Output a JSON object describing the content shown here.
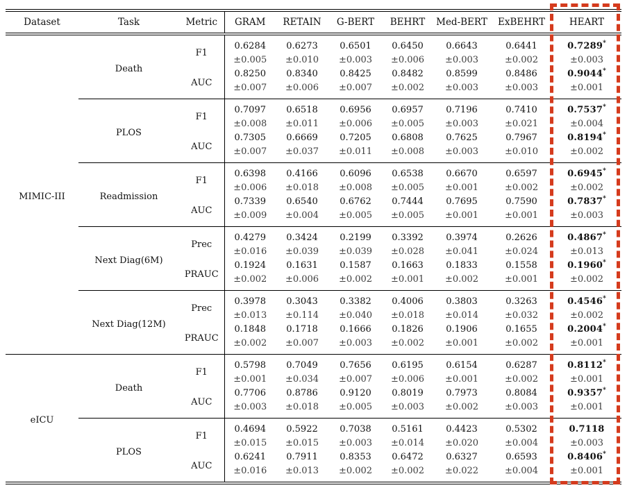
{
  "table": {
    "columns": [
      "Dataset",
      "Task",
      "Metric",
      "GRAM",
      "RETAIN",
      "G-BERT",
      "BEHRT",
      "Med-BERT",
      "ExBEHRT",
      "HEART"
    ],
    "star_symbol": "*",
    "plus_minus": "±",
    "highlight_color": "#d53b1d",
    "groups": [
      {
        "dataset": "MIMIC-III",
        "tasks": [
          {
            "task": "Death",
            "rows": [
              {
                "metric": "F1",
                "values": [
                  "0.6284",
                  "0.6273",
                  "0.6501",
                  "0.6450",
                  "0.6643",
                  "0.6441"
                ],
                "errors": [
                  "±0.005",
                  "±0.010",
                  "±0.003",
                  "±0.006",
                  "±0.003",
                  "±0.002"
                ],
                "heart": {
                  "value": "0.7289",
                  "star": true,
                  "error": "±0.003"
                }
              },
              {
                "metric": "AUC",
                "values": [
                  "0.8250",
                  "0.8340",
                  "0.8425",
                  "0.8482",
                  "0.8599",
                  "0.8486"
                ],
                "errors": [
                  "±0.007",
                  "±0.006",
                  "±0.007",
                  "±0.002",
                  "±0.003",
                  "±0.003"
                ],
                "heart": {
                  "value": "0.9044",
                  "star": true,
                  "error": "±0.001"
                }
              }
            ]
          },
          {
            "task": "PLOS",
            "rows": [
              {
                "metric": "F1",
                "values": [
                  "0.7097",
                  "0.6518",
                  "0.6956",
                  "0.6957",
                  "0.7196",
                  "0.7410"
                ],
                "errors": [
                  "±0.008",
                  "±0.011",
                  "±0.006",
                  "±0.005",
                  "±0.003",
                  "±0.021"
                ],
                "heart": {
                  "value": "0.7537",
                  "star": true,
                  "error": "±0.004"
                }
              },
              {
                "metric": "AUC",
                "values": [
                  "0.7305",
                  "0.6669",
                  "0.7205",
                  "0.6808",
                  "0.7625",
                  "0.7967"
                ],
                "errors": [
                  "±0.007",
                  "±0.037",
                  "±0.011",
                  "±0.008",
                  "±0.003",
                  "±0.010"
                ],
                "heart": {
                  "value": "0.8194",
                  "star": true,
                  "error": "±0.002"
                }
              }
            ]
          },
          {
            "task": "Readmission",
            "rows": [
              {
                "metric": "F1",
                "values": [
                  "0.6398",
                  "0.4166",
                  "0.6096",
                  "0.6538",
                  "0.6670",
                  "0.6597"
                ],
                "errors": [
                  "±0.006",
                  "±0.018",
                  "±0.008",
                  "±0.005",
                  "±0.001",
                  "±0.002"
                ],
                "heart": {
                  "value": "0.6945",
                  "star": true,
                  "error": "±0.002"
                }
              },
              {
                "metric": "AUC",
                "values": [
                  "0.7339",
                  "0.6540",
                  "0.6762",
                  "0.7444",
                  "0.7695",
                  "0.7590"
                ],
                "errors": [
                  "±0.009",
                  "±0.004",
                  "±0.005",
                  "±0.005",
                  "±0.001",
                  "±0.001"
                ],
                "heart": {
                  "value": "0.7837",
                  "star": true,
                  "error": "±0.003"
                }
              }
            ]
          },
          {
            "task": "Next Diag(6M)",
            "rows": [
              {
                "metric": "Prec",
                "values": [
                  "0.4279",
                  "0.3424",
                  "0.2199",
                  "0.3392",
                  "0.3974",
                  "0.2626"
                ],
                "errors": [
                  "±0.016",
                  "±0.039",
                  "±0.039",
                  "±0.028",
                  "±0.041",
                  "±0.024"
                ],
                "heart": {
                  "value": "0.4867",
                  "star": true,
                  "error": "±0.013"
                }
              },
              {
                "metric": "PRAUC",
                "values": [
                  "0.1924",
                  "0.1631",
                  "0.1587",
                  "0.1663",
                  "0.1833",
                  "0.1558"
                ],
                "errors": [
                  "±0.002",
                  "±0.006",
                  "±0.002",
                  "±0.001",
                  "±0.002",
                  "±0.001"
                ],
                "heart": {
                  "value": "0.1960",
                  "star": true,
                  "error": "±0.002"
                }
              }
            ]
          },
          {
            "task": "Next Diag(12M)",
            "rows": [
              {
                "metric": "Prec",
                "values": [
                  "0.3978",
                  "0.3043",
                  "0.3382",
                  "0.4006",
                  "0.3803",
                  "0.3263"
                ],
                "errors": [
                  "±0.013",
                  "±0.114",
                  "±0.040",
                  "±0.018",
                  "±0.014",
                  "±0.032"
                ],
                "heart": {
                  "value": "0.4546",
                  "star": true,
                  "error": "±0.002"
                }
              },
              {
                "metric": "PRAUC",
                "values": [
                  "0.1848",
                  "0.1718",
                  "0.1666",
                  "0.1826",
                  "0.1906",
                  "0.1655"
                ],
                "errors": [
                  "±0.002",
                  "±0.007",
                  "±0.003",
                  "±0.002",
                  "±0.001",
                  "±0.002"
                ],
                "heart": {
                  "value": "0.2004",
                  "star": true,
                  "error": "±0.001"
                }
              }
            ]
          }
        ]
      },
      {
        "dataset": "eICU",
        "tasks": [
          {
            "task": "Death",
            "rows": [
              {
                "metric": "F1",
                "values": [
                  "0.5798",
                  "0.7049",
                  "0.7656",
                  "0.6195",
                  "0.6154",
                  "0.6287"
                ],
                "errors": [
                  "±0.001",
                  "±0.034",
                  "±0.007",
                  "±0.006",
                  "±0.001",
                  "±0.002"
                ],
                "heart": {
                  "value": "0.8112",
                  "star": true,
                  "error": "±0.001"
                }
              },
              {
                "metric": "AUC",
                "values": [
                  "0.7706",
                  "0.8786",
                  "0.9120",
                  "0.8019",
                  "0.7973",
                  "0.8084"
                ],
                "errors": [
                  "±0.003",
                  "±0.018",
                  "±0.005",
                  "±0.003",
                  "±0.002",
                  "±0.003"
                ],
                "heart": {
                  "value": "0.9357",
                  "star": true,
                  "error": "±0.001"
                }
              }
            ]
          },
          {
            "task": "PLOS",
            "rows": [
              {
                "metric": "F1",
                "values": [
                  "0.4694",
                  "0.5922",
                  "0.7038",
                  "0.5161",
                  "0.4423",
                  "0.5302"
                ],
                "errors": [
                  "±0.015",
                  "±0.015",
                  "±0.003",
                  "±0.014",
                  "±0.020",
                  "±0.004"
                ],
                "heart": {
                  "value": "0.7118",
                  "star": false,
                  "error": "±0.003"
                }
              },
              {
                "metric": "AUC",
                "values": [
                  "0.6241",
                  "0.7911",
                  "0.8353",
                  "0.6472",
                  "0.6327",
                  "0.6593"
                ],
                "errors": [
                  "±0.016",
                  "±0.013",
                  "±0.002",
                  "±0.002",
                  "±0.022",
                  "±0.004"
                ],
                "heart": {
                  "value": "0.8406",
                  "star": true,
                  "error": "±0.001"
                }
              }
            ]
          }
        ]
      }
    ]
  }
}
